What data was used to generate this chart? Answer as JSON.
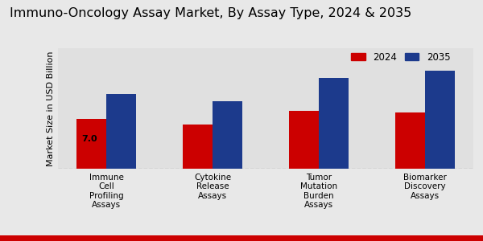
{
  "title": "Immuno-Oncology Assay Market, By Assay Type, 2024 & 2035",
  "ylabel": "Market Size in USD Billion",
  "categories": [
    "Immune\nCell\nProfiling\nAssays",
    "Cytokine\nRelease\nAssays",
    "Tumor\nMutation\nBurden\nAssays",
    "Biomarker\nDiscovery\nAssays"
  ],
  "values_2024": [
    7.0,
    6.2,
    8.2,
    7.9
  ],
  "values_2035": [
    10.5,
    9.5,
    12.8,
    13.8
  ],
  "color_2024": "#cc0000",
  "color_2035": "#1c3a8c",
  "bar_width": 0.28,
  "label_2024": "2024",
  "label_2035": "2035",
  "annotation_value": "7.0",
  "background_color": "#e8e8e8",
  "plot_bg_color": "#e0e0e0",
  "title_fontsize": 11.5,
  "axis_label_fontsize": 8,
  "tick_fontsize": 7.5,
  "legend_fontsize": 8.5,
  "ylim": [
    0,
    17
  ],
  "bottom_bar_color": "#cc0000",
  "bottom_bar_height": 0.025
}
